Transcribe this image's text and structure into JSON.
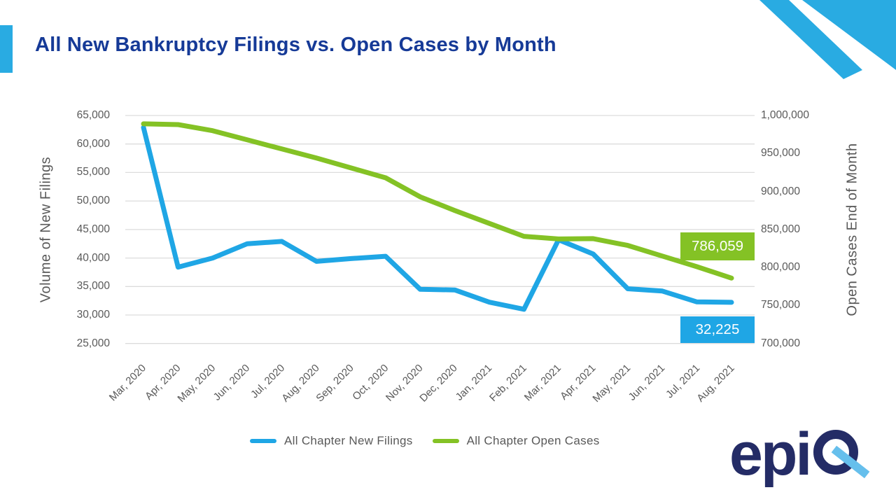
{
  "slide": {
    "title": "All New Bankruptcy Filings vs. Open Cases by Month"
  },
  "colors": {
    "accent_blue": "#29ABE2",
    "line_blue": "#1FA6E5",
    "line_green": "#84C225",
    "title_navy": "#163A97",
    "axis_gray": "#595959",
    "gridline_gray": "#DCDCDC",
    "logo_navy": "#242C66",
    "logo_slash_blue": "#66BFEC"
  },
  "chart_data": {
    "type": "line",
    "title": "All New Bankruptcy Filings vs. Open Cases by Month",
    "categories": [
      "Mar, 2020",
      "Apr, 2020",
      "May, 2020",
      "Jun, 2020",
      "Jul, 2020",
      "Aug, 2020",
      "Sep, 2020",
      "Oct, 2020",
      "Nov, 2020",
      "Dec, 2020",
      "Jan, 2021",
      "Feb, 2021",
      "Mar, 2021",
      "Apr, 2021",
      "May, 2021",
      "Jun, 2021",
      "Jul, 2021",
      "Aug, 2021"
    ],
    "series": [
      {
        "name": "All Chapter New Filings",
        "axis": "left",
        "color": "#1FA6E5",
        "values": [
          62900,
          38400,
          40000,
          42500,
          42900,
          39400,
          39900,
          40300,
          34500,
          34400,
          32250,
          31000,
          43200,
          40700,
          34600,
          34200,
          32300,
          32225
        ],
        "last_point_label": "32,225"
      },
      {
        "name": "All Chapter Open Cases",
        "axis": "right",
        "color": "#84C225",
        "values": [
          989000,
          988000,
          980000,
          968000,
          956000,
          944000,
          931000,
          918000,
          893000,
          875000,
          858000,
          841000,
          837500,
          838000,
          829000,
          815000,
          801000,
          786059
        ],
        "last_point_label": "786,059"
      }
    ],
    "left_axis": {
      "title": "Volume of New Filings",
      "min": 25000,
      "max": 65000,
      "tick_step": 5000,
      "tick_labels": [
        "65,000",
        "60,000",
        "55,000",
        "50,000",
        "45,000",
        "40,000",
        "35,000",
        "30,000",
        "25,000"
      ]
    },
    "right_axis": {
      "title": "Open Cases End of Month",
      "min": 700000,
      "max": 1000000,
      "tick_step": 50000,
      "tick_labels": [
        "1,000,000",
        "950,000",
        "900,000",
        "850,000",
        "800,000",
        "750,000",
        "700,000"
      ]
    },
    "grid": true,
    "legend_position": "bottom-center"
  },
  "legend": {
    "items": [
      {
        "label": "All Chapter New Filings",
        "color": "#1FA6E5"
      },
      {
        "label": "All Chapter Open Cases",
        "color": "#84C225"
      }
    ]
  },
  "callouts": {
    "open_cases": {
      "text": "786,059",
      "color": "#84C225"
    },
    "new_filings": {
      "text": "32,225",
      "color": "#1FA6E5"
    }
  },
  "logo": {
    "brand": "epiq",
    "letters": "epi"
  }
}
